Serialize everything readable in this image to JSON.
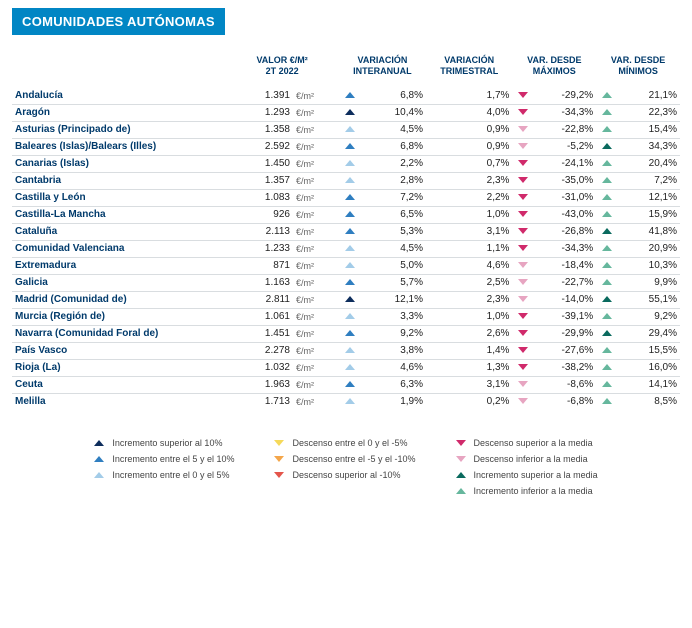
{
  "title": "COMUNIDADES AUTÓNOMAS",
  "columns": {
    "c1a": "VALOR €/M²",
    "c1b": "2T 2022",
    "c2a": "VARIACIÓN",
    "c2b": "INTERANUAL",
    "c3a": "VARIACIÓN",
    "c3b": "TRIMESTRAL",
    "c4a": "VAR. DESDE",
    "c4b": "MÁXIMOS",
    "c5a": "VAR. DESDE",
    "c5b": "MÍNIMOS"
  },
  "unit": "€/m²",
  "rows": [
    {
      "name": "Andalucía",
      "val": "1.391",
      "ia_i": "c-blue",
      "ia": "6,8%",
      "trim": "1,7%",
      "max_i": "c-pink",
      "max": "-29,2%",
      "min_i": "c-lgreen",
      "min": "21,1%"
    },
    {
      "name": "Aragón",
      "val": "1.293",
      "ia_i": "c-navy",
      "ia": "10,4%",
      "trim": "4,0%",
      "max_i": "c-pink",
      "max": "-34,3%",
      "min_i": "c-lgreen",
      "min": "22,3%"
    },
    {
      "name": "Asturias (Principado de)",
      "val": "1.358",
      "ia_i": "c-lblue",
      "ia": "4,5%",
      "trim": "0,9%",
      "max_i": "c-lpink",
      "max": "-22,8%",
      "min_i": "c-lgreen",
      "min": "15,4%"
    },
    {
      "name": "Baleares (Islas)/Balears (Illes)",
      "val": "2.592",
      "ia_i": "c-blue",
      "ia": "6,8%",
      "trim": "0,9%",
      "max_i": "c-lpink",
      "max": "-5,2%",
      "min_i": "c-dgreen",
      "min": "34,3%"
    },
    {
      "name": "Canarias (Islas)",
      "val": "1.450",
      "ia_i": "c-lblue",
      "ia": "2,2%",
      "trim": "0,7%",
      "max_i": "c-pink",
      "max": "-24,1%",
      "min_i": "c-lgreen",
      "min": "20,4%"
    },
    {
      "name": "Cantabria",
      "val": "1.357",
      "ia_i": "c-lblue",
      "ia": "2,8%",
      "trim": "2,3%",
      "max_i": "c-pink",
      "max": "-35,0%",
      "min_i": "c-lgreen",
      "min": "7,2%"
    },
    {
      "name": "Castilla y León",
      "val": "1.083",
      "ia_i": "c-blue",
      "ia": "7,2%",
      "trim": "2,2%",
      "max_i": "c-pink",
      "max": "-31,0%",
      "min_i": "c-lgreen",
      "min": "12,1%"
    },
    {
      "name": "Castilla-La Mancha",
      "val": "926",
      "ia_i": "c-blue",
      "ia": "6,5%",
      "trim": "1,0%",
      "max_i": "c-pink",
      "max": "-43,0%",
      "min_i": "c-lgreen",
      "min": "15,9%"
    },
    {
      "name": "Cataluña",
      "val": "2.113",
      "ia_i": "c-blue",
      "ia": "5,3%",
      "trim": "3,1%",
      "max_i": "c-pink",
      "max": "-26,8%",
      "min_i": "c-dgreen",
      "min": "41,8%"
    },
    {
      "name": "Comunidad Valenciana",
      "val": "1.233",
      "ia_i": "c-lblue",
      "ia": "4,5%",
      "trim": "1,1%",
      "max_i": "c-pink",
      "max": "-34,3%",
      "min_i": "c-lgreen",
      "min": "20,9%"
    },
    {
      "name": "Extremadura",
      "val": "871",
      "ia_i": "c-lblue",
      "ia": "5,0%",
      "trim": "4,6%",
      "max_i": "c-lpink",
      "max": "-18,4%",
      "min_i": "c-lgreen",
      "min": "10,3%"
    },
    {
      "name": "Galicia",
      "val": "1.163",
      "ia_i": "c-blue",
      "ia": "5,7%",
      "trim": "2,5%",
      "max_i": "c-lpink",
      "max": "-22,7%",
      "min_i": "c-lgreen",
      "min": "9,9%"
    },
    {
      "name": "Madrid (Comunidad de)",
      "val": "2.811",
      "ia_i": "c-navy",
      "ia": "12,1%",
      "trim": "2,3%",
      "max_i": "c-lpink",
      "max": "-14,0%",
      "min_i": "c-dgreen",
      "min": "55,1%"
    },
    {
      "name": "Murcia (Región de)",
      "val": "1.061",
      "ia_i": "c-lblue",
      "ia": "3,3%",
      "trim": "1,0%",
      "max_i": "c-pink",
      "max": "-39,1%",
      "min_i": "c-lgreen",
      "min": "9,2%"
    },
    {
      "name": "Navarra (Comunidad Foral de)",
      "val": "1.451",
      "ia_i": "c-blue",
      "ia": "9,2%",
      "trim": "2,6%",
      "max_i": "c-pink",
      "max": "-29,9%",
      "min_i": "c-dgreen",
      "min": "29,4%"
    },
    {
      "name": "País Vasco",
      "val": "2.278",
      "ia_i": "c-lblue",
      "ia": "3,8%",
      "trim": "1,4%",
      "max_i": "c-pink",
      "max": "-27,6%",
      "min_i": "c-lgreen",
      "min": "15,5%"
    },
    {
      "name": "Rioja (La)",
      "val": "1.032",
      "ia_i": "c-lblue",
      "ia": "4,6%",
      "trim": "1,3%",
      "max_i": "c-pink",
      "max": "-38,2%",
      "min_i": "c-lgreen",
      "min": "16,0%"
    },
    {
      "name": "Ceuta",
      "val": "1.963",
      "ia_i": "c-blue",
      "ia": "6,3%",
      "trim": "3,1%",
      "max_i": "c-lpink",
      "max": "-8,6%",
      "min_i": "c-lgreen",
      "min": "14,1%"
    },
    {
      "name": "Melilla",
      "val": "1.713",
      "ia_i": "c-lblue",
      "ia": "1,9%",
      "trim": "0,2%",
      "max_i": "c-lpink",
      "max": "-6,8%",
      "min_i": "c-lgreen",
      "min": "8,5%"
    }
  ],
  "legend": {
    "col1": [
      {
        "dir": "up",
        "cls": "c-navy",
        "txt": "Incremento superior al 10%"
      },
      {
        "dir": "up",
        "cls": "c-blue",
        "txt": "Incremento entre el 5 y el 10%"
      },
      {
        "dir": "up",
        "cls": "c-lblue",
        "txt": "Incremento entre el 0 y el 5%"
      }
    ],
    "col2": [
      {
        "dir": "dn",
        "cls": "c-yellow",
        "txt": "Descenso entre el 0 y el -5%"
      },
      {
        "dir": "dn",
        "cls": "c-orange",
        "txt": "Descenso entre el -5 y el -10%"
      },
      {
        "dir": "dn",
        "cls": "c-red",
        "txt": "Descenso superior al -10%"
      }
    ],
    "col3": [
      {
        "dir": "dn",
        "cls": "c-pink",
        "txt": "Descenso superior a la media"
      },
      {
        "dir": "dn",
        "cls": "c-lpink",
        "txt": "Descenso inferior a la media"
      },
      {
        "dir": "up",
        "cls": "c-dgreen",
        "txt": "Incremento superior a la media"
      },
      {
        "dir": "up",
        "cls": "c-lgreen",
        "txt": "Incremento inferior a la media"
      }
    ]
  }
}
